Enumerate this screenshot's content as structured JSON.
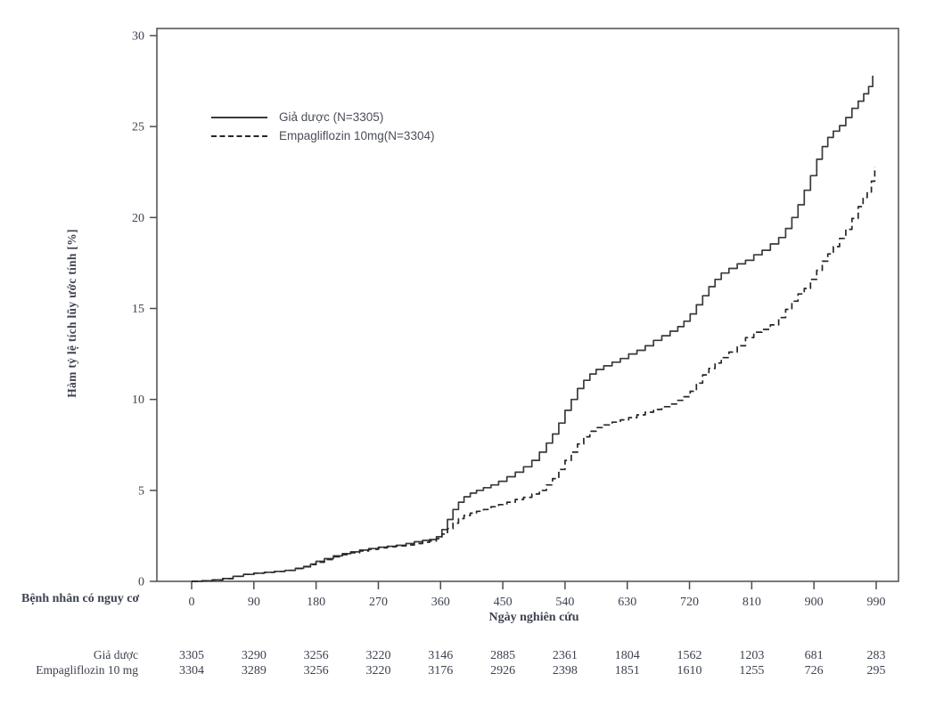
{
  "chart_data": {
    "type": "line",
    "subtype": "kaplan-meier-cumulative-incidence-step",
    "title": "",
    "xlabel": "Ngày nghiên cứu",
    "ylabel": "Hàm tỷ lệ tích lũy ước tính [%]",
    "xlim": [
      0,
      1022
    ],
    "ylim": [
      0,
      30
    ],
    "xticks": [
      0,
      90,
      180,
      270,
      360,
      450,
      540,
      630,
      720,
      810,
      900,
      990
    ],
    "yticks": [
      0,
      5,
      10,
      15,
      20,
      25,
      30
    ],
    "grid": false,
    "legend_position": "inside-top-left",
    "axis_color": "#4d4d4d",
    "text_color": "#3d4250",
    "series": [
      {
        "name": "Giả dược (N=3305)",
        "style": "solid",
        "color": "#3a3a3a",
        "points": [
          [
            0,
            0
          ],
          [
            15,
            0.03
          ],
          [
            30,
            0.08
          ],
          [
            45,
            0.15
          ],
          [
            60,
            0.28
          ],
          [
            75,
            0.38
          ],
          [
            90,
            0.45
          ],
          [
            105,
            0.5
          ],
          [
            120,
            0.55
          ],
          [
            135,
            0.6
          ],
          [
            150,
            0.72
          ],
          [
            162,
            0.82
          ],
          [
            172,
            0.95
          ],
          [
            180,
            1.1
          ],
          [
            192,
            1.25
          ],
          [
            205,
            1.4
          ],
          [
            218,
            1.52
          ],
          [
            230,
            1.62
          ],
          [
            243,
            1.72
          ],
          [
            256,
            1.8
          ],
          [
            270,
            1.88
          ],
          [
            283,
            1.93
          ],
          [
            296,
            1.98
          ],
          [
            310,
            2.08
          ],
          [
            322,
            2.18
          ],
          [
            334,
            2.25
          ],
          [
            344,
            2.3
          ],
          [
            354,
            2.45
          ],
          [
            362,
            2.85
          ],
          [
            370,
            3.4
          ],
          [
            378,
            3.95
          ],
          [
            386,
            4.35
          ],
          [
            394,
            4.65
          ],
          [
            403,
            4.85
          ],
          [
            412,
            5.0
          ],
          [
            422,
            5.15
          ],
          [
            433,
            5.3
          ],
          [
            444,
            5.5
          ],
          [
            456,
            5.75
          ],
          [
            468,
            6.0
          ],
          [
            480,
            6.3
          ],
          [
            492,
            6.65
          ],
          [
            503,
            7.1
          ],
          [
            513,
            7.6
          ],
          [
            522,
            8.1
          ],
          [
            531,
            8.7
          ],
          [
            540,
            9.4
          ],
          [
            549,
            10.0
          ],
          [
            558,
            10.6
          ],
          [
            567,
            11.05
          ],
          [
            576,
            11.4
          ],
          [
            585,
            11.65
          ],
          [
            596,
            11.85
          ],
          [
            608,
            12.05
          ],
          [
            620,
            12.25
          ],
          [
            632,
            12.5
          ],
          [
            644,
            12.7
          ],
          [
            656,
            12.95
          ],
          [
            668,
            13.25
          ],
          [
            680,
            13.5
          ],
          [
            692,
            13.75
          ],
          [
            703,
            14.0
          ],
          [
            712,
            14.3
          ],
          [
            721,
            14.7
          ],
          [
            730,
            15.2
          ],
          [
            739,
            15.7
          ],
          [
            748,
            16.2
          ],
          [
            757,
            16.6
          ],
          [
            766,
            16.95
          ],
          [
            777,
            17.2
          ],
          [
            789,
            17.45
          ],
          [
            801,
            17.65
          ],
          [
            813,
            17.95
          ],
          [
            825,
            18.2
          ],
          [
            837,
            18.55
          ],
          [
            849,
            18.9
          ],
          [
            859,
            19.4
          ],
          [
            868,
            20.0
          ],
          [
            877,
            20.7
          ],
          [
            886,
            21.5
          ],
          [
            895,
            22.3
          ],
          [
            904,
            23.2
          ],
          [
            912,
            23.9
          ],
          [
            920,
            24.4
          ],
          [
            928,
            24.75
          ],
          [
            937,
            25.05
          ],
          [
            946,
            25.5
          ],
          [
            955,
            26.0
          ],
          [
            964,
            26.4
          ],
          [
            972,
            26.8
          ],
          [
            979,
            27.2
          ],
          [
            985,
            27.8
          ]
        ]
      },
      {
        "name": "Empagliflozin 10mg(N=3304)",
        "style": "dashed",
        "color": "#262626",
        "points": [
          [
            0,
            0
          ],
          [
            15,
            0.03
          ],
          [
            30,
            0.08
          ],
          [
            45,
            0.15
          ],
          [
            60,
            0.28
          ],
          [
            75,
            0.38
          ],
          [
            90,
            0.45
          ],
          [
            105,
            0.5
          ],
          [
            120,
            0.55
          ],
          [
            135,
            0.6
          ],
          [
            150,
            0.7
          ],
          [
            162,
            0.8
          ],
          [
            172,
            0.92
          ],
          [
            180,
            1.05
          ],
          [
            192,
            1.2
          ],
          [
            205,
            1.35
          ],
          [
            218,
            1.47
          ],
          [
            230,
            1.57
          ],
          [
            243,
            1.67
          ],
          [
            256,
            1.76
          ],
          [
            270,
            1.84
          ],
          [
            283,
            1.9
          ],
          [
            296,
            1.95
          ],
          [
            310,
            2.0
          ],
          [
            322,
            2.08
          ],
          [
            334,
            2.15
          ],
          [
            344,
            2.22
          ],
          [
            354,
            2.35
          ],
          [
            362,
            2.6
          ],
          [
            370,
            2.9
          ],
          [
            378,
            3.2
          ],
          [
            386,
            3.45
          ],
          [
            394,
            3.62
          ],
          [
            403,
            3.75
          ],
          [
            412,
            3.85
          ],
          [
            422,
            3.95
          ],
          [
            433,
            4.1
          ],
          [
            444,
            4.22
          ],
          [
            456,
            4.35
          ],
          [
            468,
            4.5
          ],
          [
            480,
            4.62
          ],
          [
            492,
            4.8
          ],
          [
            503,
            5.0
          ],
          [
            513,
            5.3
          ],
          [
            522,
            5.65
          ],
          [
            531,
            6.15
          ],
          [
            540,
            6.65
          ],
          [
            549,
            7.1
          ],
          [
            558,
            7.55
          ],
          [
            567,
            7.95
          ],
          [
            576,
            8.25
          ],
          [
            585,
            8.45
          ],
          [
            596,
            8.6
          ],
          [
            608,
            8.75
          ],
          [
            620,
            8.88
          ],
          [
            632,
            9.0
          ],
          [
            644,
            9.15
          ],
          [
            656,
            9.3
          ],
          [
            668,
            9.45
          ],
          [
            680,
            9.6
          ],
          [
            692,
            9.75
          ],
          [
            703,
            9.95
          ],
          [
            712,
            10.15
          ],
          [
            721,
            10.45
          ],
          [
            730,
            10.9
          ],
          [
            739,
            11.35
          ],
          [
            748,
            11.7
          ],
          [
            757,
            12.0
          ],
          [
            766,
            12.3
          ],
          [
            777,
            12.6
          ],
          [
            789,
            12.95
          ],
          [
            801,
            13.4
          ],
          [
            813,
            13.7
          ],
          [
            825,
            13.85
          ],
          [
            837,
            14.1
          ],
          [
            849,
            14.5
          ],
          [
            859,
            14.95
          ],
          [
            868,
            15.4
          ],
          [
            877,
            15.8
          ],
          [
            886,
            16.1
          ],
          [
            895,
            16.6
          ],
          [
            904,
            17.1
          ],
          [
            912,
            17.6
          ],
          [
            920,
            18.0
          ],
          [
            928,
            18.4
          ],
          [
            937,
            18.85
          ],
          [
            946,
            19.35
          ],
          [
            955,
            19.95
          ],
          [
            964,
            20.6
          ],
          [
            971,
            21.1
          ],
          [
            977,
            21.4
          ],
          [
            983,
            22.0
          ],
          [
            988,
            22.8
          ]
        ]
      }
    ],
    "risk_table": {
      "title": "Bệnh nhân có nguy cơ",
      "timepoints": [
        0,
        90,
        180,
        270,
        360,
        450,
        540,
        630,
        720,
        810,
        900,
        990
      ],
      "rows": [
        {
          "label": "Giả dược",
          "counts": [
            3305,
            3290,
            3256,
            3220,
            3146,
            2885,
            2361,
            1804,
            1562,
            1203,
            681,
            283
          ]
        },
        {
          "label": "Empagliflozin 10 mg",
          "counts": [
            3304,
            3289,
            3256,
            3220,
            3176,
            2926,
            2398,
            1851,
            1610,
            1255,
            726,
            295
          ]
        }
      ]
    }
  }
}
